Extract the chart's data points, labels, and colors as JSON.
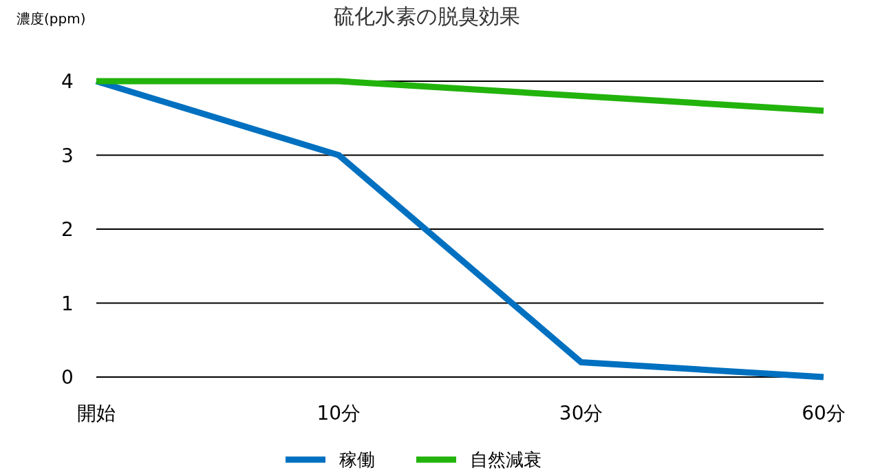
{
  "chart_data": {
    "type": "line",
    "title": "硫化水素の脱臭効果",
    "ylabel": "濃度(ppm)",
    "categories": [
      "開始",
      "10分",
      "30分",
      "60分"
    ],
    "series": [
      {
        "name": "稼働",
        "color": "#0070c0",
        "values": [
          4,
          3,
          0.2,
          0
        ]
      },
      {
        "name": "自然減衰",
        "color": "#22b30c",
        "values": [
          4,
          4,
          3.8,
          3.6
        ]
      }
    ],
    "ylim": [
      0,
      4
    ],
    "yticks": [
      0,
      1,
      2,
      3,
      4
    ],
    "grid": "y",
    "legend": "bottom",
    "marker": "none",
    "line_style": "solid"
  }
}
